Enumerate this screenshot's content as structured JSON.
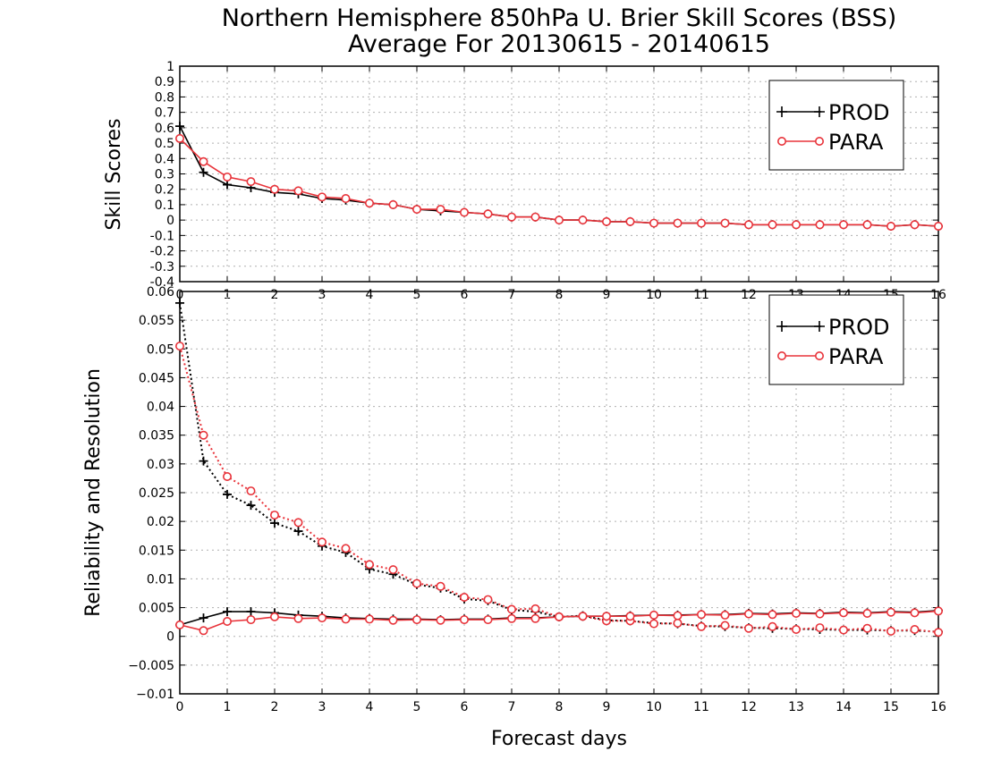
{
  "title_line1": "Northern Hemisphere 850hPa U. Brier Skill Scores (BSS)",
  "title_line2": "Average For 20130615 - 20140615",
  "colors": {
    "prod": "#000000",
    "para": "#e8333a",
    "grid": "#b0b0b0"
  },
  "chart_data": [
    {
      "type": "line",
      "ylabel": "Skill Scores",
      "xlabel": "",
      "xlim": [
        0,
        16
      ],
      "ylim": [
        -0.4,
        1
      ],
      "x_ticks": [
        "0",
        "1",
        "2",
        "3",
        "4",
        "5",
        "6",
        "7",
        "8",
        "9",
        "10",
        "11",
        "12",
        "13",
        "14",
        "15",
        "16"
      ],
      "y_ticks": [
        "-0.4",
        "-0.3",
        "-0.2",
        "-0.1",
        "0",
        "0.1",
        "0.2",
        "0.3",
        "0.4",
        "0.5",
        "0.6",
        "0.7",
        "0.8",
        "0.9",
        "1"
      ],
      "grid": true,
      "legend": {
        "position": "top-right",
        "entries": [
          "PROD",
          "PARA"
        ]
      },
      "x": [
        0,
        0.5,
        1,
        1.5,
        2,
        2.5,
        3,
        3.5,
        4,
        4.5,
        5,
        5.5,
        6,
        6.5,
        7,
        7.5,
        8,
        8.5,
        9,
        9.5,
        10,
        10.5,
        11,
        11.5,
        12,
        12.5,
        13,
        13.5,
        14,
        14.5,
        15,
        15.5,
        16
      ],
      "series": [
        {
          "name": "PROD",
          "marker": "plus",
          "style": "solid",
          "values": [
            0.61,
            0.31,
            0.23,
            0.21,
            0.18,
            0.17,
            0.14,
            0.13,
            0.11,
            0.1,
            0.07,
            0.06,
            0.05,
            0.04,
            0.02,
            0.02,
            0.0,
            0.0,
            -0.01,
            -0.01,
            -0.02,
            -0.02,
            -0.02,
            -0.02,
            -0.03,
            -0.03,
            -0.03,
            -0.03,
            -0.03,
            -0.03,
            -0.04,
            -0.03,
            -0.04
          ]
        },
        {
          "name": "PARA",
          "marker": "circle",
          "style": "solid",
          "values": [
            0.53,
            0.38,
            0.28,
            0.25,
            0.2,
            0.19,
            0.15,
            0.14,
            0.11,
            0.1,
            0.07,
            0.07,
            0.05,
            0.04,
            0.02,
            0.02,
            0.0,
            0.0,
            -0.01,
            -0.01,
            -0.02,
            -0.02,
            -0.02,
            -0.02,
            -0.03,
            -0.03,
            -0.03,
            -0.03,
            -0.03,
            -0.03,
            -0.04,
            -0.03,
            -0.04
          ]
        }
      ]
    },
    {
      "type": "line",
      "ylabel": "Reliability and Resolution",
      "xlabel": "Forecast days",
      "xlim": [
        0,
        16
      ],
      "ylim": [
        -0.01,
        0.06
      ],
      "x_ticks": [
        "0",
        "1",
        "2",
        "3",
        "4",
        "5",
        "6",
        "7",
        "8",
        "9",
        "10",
        "11",
        "12",
        "13",
        "14",
        "15",
        "16"
      ],
      "y_ticks": [
        "−0.01",
        "−0.005",
        "0",
        "0.005",
        "0.01",
        "0.015",
        "0.02",
        "0.025",
        "0.03",
        "0.035",
        "0.04",
        "0.045",
        "0.05",
        "0.055",
        "0.06"
      ],
      "grid": true,
      "legend": {
        "position": "top-right",
        "entries": [
          "PROD",
          "PARA"
        ]
      },
      "x": [
        0,
        0.5,
        1,
        1.5,
        2,
        2.5,
        3,
        3.5,
        4,
        4.5,
        5,
        5.5,
        6,
        6.5,
        7,
        7.5,
        8,
        8.5,
        9,
        9.5,
        10,
        10.5,
        11,
        11.5,
        12,
        12.5,
        13,
        13.5,
        14,
        14.5,
        15,
        15.5,
        16
      ],
      "series": [
        {
          "name": "PROD",
          "marker": "plus",
          "style": "dotted",
          "group": "reliability",
          "values": [
            0.058,
            0.0305,
            0.0247,
            0.0228,
            0.0197,
            0.0183,
            0.0157,
            0.0146,
            0.0117,
            0.0108,
            0.009,
            0.0084,
            0.0065,
            0.0062,
            0.0046,
            0.0043,
            0.0034,
            0.0036,
            0.0028,
            0.0027,
            0.0023,
            0.0022,
            0.0018,
            0.0017,
            0.0015,
            0.0014,
            0.0013,
            0.0012,
            0.0011,
            0.0011,
            0.001,
            0.001,
            0.0008
          ]
        },
        {
          "name": "PARA",
          "marker": "circle",
          "style": "dotted",
          "group": "reliability",
          "values": [
            0.0505,
            0.035,
            0.0278,
            0.0253,
            0.0211,
            0.0198,
            0.0164,
            0.0153,
            0.0125,
            0.0116,
            0.0092,
            0.0087,
            0.0068,
            0.0064,
            0.0047,
            0.0048,
            0.0034,
            0.0035,
            0.0027,
            0.0027,
            0.0022,
            0.0023,
            0.0017,
            0.0019,
            0.0014,
            0.0017,
            0.0012,
            0.0015,
            0.0011,
            0.0014,
            0.0009,
            0.0012,
            0.0007
          ]
        },
        {
          "name": "PROD",
          "marker": "plus",
          "style": "solid",
          "group": "resolution",
          "values": [
            0.002,
            0.0032,
            0.0043,
            0.0043,
            0.0041,
            0.0037,
            0.0035,
            0.0032,
            0.0031,
            0.003,
            0.003,
            0.0029,
            0.003,
            0.003,
            0.0032,
            0.0032,
            0.0034,
            0.0035,
            0.0035,
            0.0036,
            0.0037,
            0.0037,
            0.0038,
            0.0038,
            0.004,
            0.0039,
            0.0041,
            0.004,
            0.0042,
            0.0041,
            0.0043,
            0.0042,
            0.0045
          ]
        },
        {
          "name": "PARA",
          "marker": "circle",
          "style": "solid",
          "group": "resolution",
          "values": [
            0.002,
            0.001,
            0.0026,
            0.0029,
            0.0034,
            0.0031,
            0.0032,
            0.003,
            0.003,
            0.0028,
            0.0029,
            0.0028,
            0.0029,
            0.0029,
            0.0031,
            0.0031,
            0.0034,
            0.0035,
            0.0035,
            0.0035,
            0.0037,
            0.0036,
            0.0038,
            0.0037,
            0.0039,
            0.0038,
            0.004,
            0.0039,
            0.0041,
            0.004,
            0.0042,
            0.0041,
            0.0044
          ]
        }
      ]
    }
  ]
}
